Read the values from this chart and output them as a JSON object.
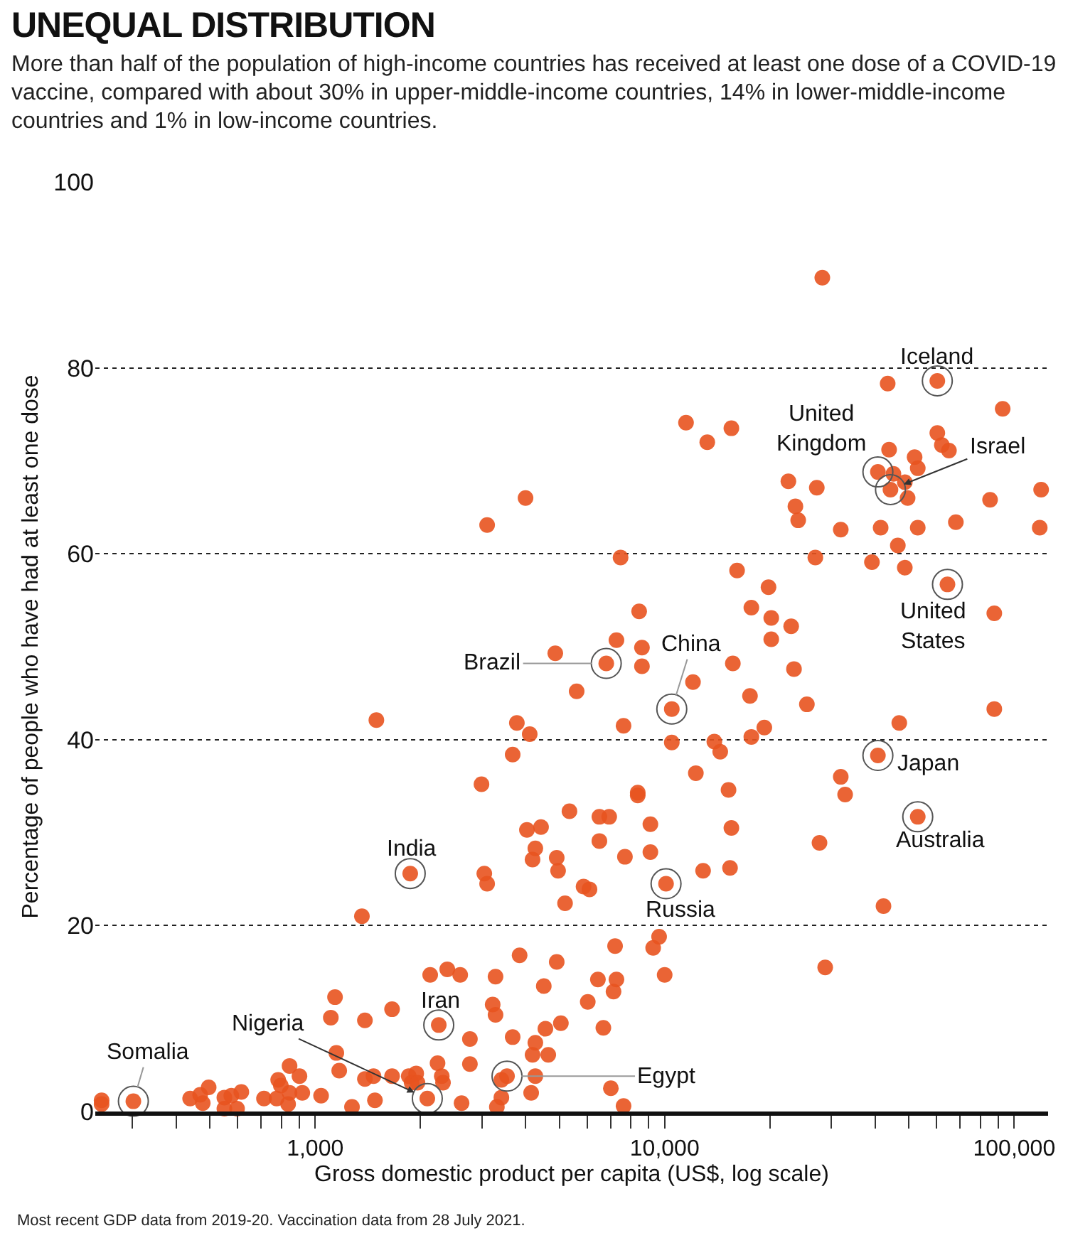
{
  "chart_data": {
    "type": "scatter",
    "title": "UNEQUAL DISTRIBUTION",
    "subtitle": "More than half of the population of high-income countries has received at least one dose of a COVID-19 vaccine, compared with about 30% in upper-middle-income countries, 14% in lower-middle-income countries and 1% in low-income countries.",
    "xlabel": "Gross domestic product per capita (US$, log scale)",
    "ylabel": "Percentage of people who have had at least one dose",
    "log": "x",
    "grid": "y",
    "marker": "circle",
    "xlim": [
      235,
      125000
    ],
    "xticks": [
      {
        "value": 300,
        "label": null
      },
      {
        "value": 400,
        "label": null
      },
      {
        "value": 500,
        "label": null
      },
      {
        "value": 600,
        "label": null
      },
      {
        "value": 700,
        "label": null
      },
      {
        "value": 800,
        "label": null
      },
      {
        "value": 900,
        "label": null
      },
      {
        "value": 1000,
        "label": "1,000"
      },
      {
        "value": 2000,
        "label": null
      },
      {
        "value": 3000,
        "label": null
      },
      {
        "value": 4000,
        "label": null
      },
      {
        "value": 5000,
        "label": null
      },
      {
        "value": 6000,
        "label": null
      },
      {
        "value": 7000,
        "label": null
      },
      {
        "value": 8000,
        "label": null
      },
      {
        "value": 9000,
        "label": null
      },
      {
        "value": 10000,
        "label": "10,000"
      },
      {
        "value": 20000,
        "label": null
      },
      {
        "value": 30000,
        "label": null
      },
      {
        "value": 40000,
        "label": null
      },
      {
        "value": 50000,
        "label": null
      },
      {
        "value": 60000,
        "label": null
      },
      {
        "value": 70000,
        "label": null
      },
      {
        "value": 80000,
        "label": null
      },
      {
        "value": 90000,
        "label": null
      },
      {
        "value": 100000,
        "label": "100,000"
      }
    ],
    "ylim": [
      0,
      100
    ],
    "yticks": [
      0,
      20,
      40,
      60,
      80,
      100
    ],
    "series": [
      {
        "color": "#e8531f",
        "x": [
          245,
          245,
          302,
          439,
          469,
          496,
          477,
          550,
          550,
          576,
          615,
          598,
          714,
          784,
          798,
          845,
          902,
          776,
          845,
          837,
          919,
          1040,
          1275,
          1140,
          1109,
          1388,
          1660,
          1150,
          1172,
          1388,
          1469,
          1660,
          1483,
          1361,
          1871,
          3048,
          3105,
          4036,
          4429,
          5341,
          6505,
          6939,
          9102,
          15520,
          8375,
          4266,
          4188,
          4911,
          4955,
          6505,
          7697,
          9102,
          5861,
          6094,
          5188,
          10090,
          12880,
          15380,
          9640,
          7213,
          9270,
          3846,
          4911,
          2388,
          2134,
          2600,
          3282,
          6442,
          7278,
          10000,
          4510,
          7140,
          3221,
          3282,
          6025,
          2258,
          5047,
          4558,
          6677,
          2772,
          3674,
          4266,
          4188,
          4645,
          1853,
          1946,
          1888,
          1963,
          2240,
          2303,
          2322,
          2772,
          3540,
          3411,
          4266,
          3411,
          3311,
          4150,
          7015,
          7627,
          2094,
          2624,
          46450,
          26980,
          39170,
          48640,
          16110,
          19820,
          64420,
          87700,
          17700,
          20180,
          23010,
          20180,
          15670,
          23440,
          17540,
          25520,
          87700,
          46900,
          19280,
          17700,
          13870,
          14420,
          40740,
          31900,
          32830,
          15230,
          52970,
          27730,
          42270,
          28790,
          3105,
          7479,
          8453,
          7278,
          8610,
          4865,
          6806,
          8610,
          12050,
          10480,
          5600,
          1497,
          3777,
          4111,
          7627,
          10480,
          3674,
          12280,
          2992,
          8375,
          28250,
          60260,
          43450,
          92680,
          11510,
          15520,
          13240,
          60260,
          62080,
          65050,
          43860,
          51880,
          52970,
          40740,
          45120,
          48640,
          44260,
          49550,
          22590,
          27240,
          119400,
          85290,
          23660,
          24100,
          31900,
          41490,
          52970,
          68080,
          118300,
          3999
        ],
        "values": [
          1.2,
          0.8,
          1.1,
          1.4,
          1.8,
          2.6,
          0.9,
          1.5,
          0.3,
          1.7,
          2.1,
          0.3,
          1.4,
          3.4,
          2.8,
          4.9,
          3.8,
          1.4,
          2.0,
          0.8,
          2.0,
          1.7,
          0.5,
          12.3,
          10.1,
          9.8,
          11.0,
          6.3,
          4.4,
          3.5,
          3.8,
          3.8,
          1.2,
          21.0,
          25.6,
          25.6,
          24.5,
          30.3,
          30.6,
          32.3,
          31.7,
          31.7,
          30.9,
          30.5,
          34.0,
          28.3,
          27.1,
          27.3,
          25.9,
          29.1,
          27.4,
          27.9,
          24.2,
          23.9,
          22.4,
          24.5,
          25.9,
          26.2,
          18.8,
          17.8,
          17.6,
          16.8,
          16.1,
          15.3,
          14.7,
          14.7,
          14.5,
          14.2,
          14.2,
          14.7,
          13.5,
          12.9,
          11.5,
          10.4,
          11.8,
          9.3,
          9.5,
          8.9,
          9.0,
          7.8,
          8.0,
          7.4,
          6.1,
          6.1,
          3.8,
          4.1,
          3.1,
          3.1,
          5.2,
          3.8,
          3.1,
          5.1,
          3.8,
          3.4,
          3.8,
          1.5,
          0.5,
          2.0,
          2.5,
          0.6,
          1.4,
          0.9,
          60.9,
          59.6,
          59.1,
          58.5,
          58.2,
          56.4,
          56.7,
          53.6,
          54.2,
          53.1,
          52.2,
          50.8,
          48.2,
          47.6,
          44.7,
          43.8,
          43.3,
          41.8,
          41.3,
          40.3,
          39.8,
          38.7,
          38.3,
          36.0,
          34.1,
          34.6,
          31.7,
          28.9,
          22.1,
          15.5,
          63.1,
          59.6,
          53.8,
          50.7,
          49.9,
          49.3,
          48.2,
          47.9,
          46.2,
          43.3,
          45.2,
          42.1,
          41.8,
          40.6,
          41.5,
          39.7,
          38.4,
          36.4,
          35.2,
          34.3,
          89.7,
          78.6,
          78.3,
          75.6,
          74.1,
          73.5,
          72.0,
          73.0,
          71.7,
          71.1,
          71.2,
          70.4,
          69.2,
          68.8,
          68.6,
          67.7,
          66.9,
          66.0,
          67.8,
          67.1,
          66.9,
          65.8,
          65.1,
          63.6,
          62.6,
          62.8,
          62.8,
          63.4,
          62.8,
          66.0
        ]
      }
    ],
    "annotations": [
      {
        "text": "Iceland",
        "x": 60260,
        "y": 78.6
      },
      {
        "text": "United Kingdom",
        "x": 40740,
        "y": 68.8
      },
      {
        "text": "Israel",
        "x": 44260,
        "y": 66.9
      },
      {
        "text": "United States",
        "x": 64420,
        "y": 56.7
      },
      {
        "text": "Japan",
        "x": 40740,
        "y": 38.3
      },
      {
        "text": "Australia",
        "x": 52970,
        "y": 31.7
      },
      {
        "text": "China",
        "x": 10480,
        "y": 43.3
      },
      {
        "text": "Brazil",
        "x": 6806,
        "y": 48.2
      },
      {
        "text": "India",
        "x": 1871,
        "y": 25.6
      },
      {
        "text": "Russia",
        "x": 10090,
        "y": 24.5
      },
      {
        "text": "Iran",
        "x": 2258,
        "y": 9.3
      },
      {
        "text": "Nigeria",
        "x": 2094,
        "y": 1.4
      },
      {
        "text": "Egypt",
        "x": 3540,
        "y": 3.8
      },
      {
        "text": "Somalia",
        "x": 302,
        "y": 1.1
      },
      "Most recent GDP data from 2019-20. Vaccination data from 28 July 2021."
    ]
  }
}
